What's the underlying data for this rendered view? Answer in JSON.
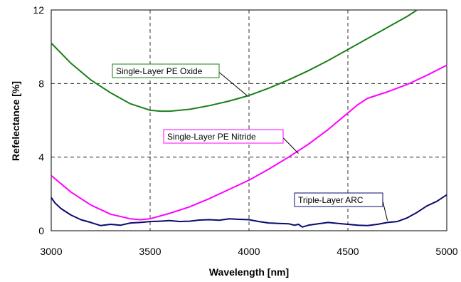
{
  "chart_data": {
    "type": "line",
    "xlabel": "Wavelength [nm]",
    "ylabel": "Refelectance [%]",
    "xlim": [
      3000,
      5000
    ],
    "ylim": [
      0,
      12
    ],
    "x_ticks": [
      "3000",
      "3500",
      "4000",
      "4500",
      "5000"
    ],
    "y_ticks": [
      "0",
      "4",
      "8",
      "12"
    ],
    "grid": "dashed at x ticks and y ticks",
    "series": [
      {
        "name": "Single-Layer PE Oxide",
        "color": "#1a7f1a",
        "x": [
          3000,
          3100,
          3200,
          3300,
          3400,
          3500,
          3550,
          3600,
          3700,
          3800,
          3900,
          4000,
          4100,
          4200,
          4300,
          4400,
          4500,
          4600,
          4700,
          4800,
          4850
        ],
        "y": [
          10.2,
          9.1,
          8.2,
          7.5,
          6.9,
          6.55,
          6.5,
          6.5,
          6.6,
          6.8,
          7.05,
          7.35,
          7.75,
          8.2,
          8.7,
          9.25,
          9.85,
          10.45,
          11.05,
          11.65,
          12.0
        ]
      },
      {
        "name": "Single-Layer PE Nitride",
        "color": "#ff00ff",
        "x": [
          3000,
          3100,
          3200,
          3300,
          3400,
          3450,
          3500,
          3600,
          3700,
          3800,
          3900,
          4000,
          4100,
          4200,
          4300,
          4400,
          4500,
          4550,
          4600,
          4700,
          4800,
          4900,
          5000
        ],
        "y": [
          3.0,
          2.1,
          1.4,
          0.9,
          0.65,
          0.6,
          0.65,
          0.95,
          1.3,
          1.75,
          2.25,
          2.75,
          3.35,
          4.0,
          4.7,
          5.5,
          6.4,
          6.85,
          7.2,
          7.55,
          7.95,
          8.45,
          9.0
        ]
      },
      {
        "name": "Triple-Layer ARC",
        "color": "#0a0a6e",
        "x": [
          3000,
          3020,
          3050,
          3100,
          3150,
          3200,
          3250,
          3300,
          3350,
          3400,
          3450,
          3500,
          3550,
          3600,
          3650,
          3700,
          3750,
          3800,
          3850,
          3900,
          3950,
          4000,
          4050,
          4100,
          4150,
          4200,
          4230,
          4250,
          4270,
          4300,
          4350,
          4400,
          4450,
          4500,
          4550,
          4600,
          4650,
          4700,
          4750,
          4800,
          4850,
          4900,
          4950,
          5000
        ],
        "y": [
          1.8,
          1.5,
          1.2,
          0.85,
          0.6,
          0.45,
          0.28,
          0.35,
          0.3,
          0.42,
          0.45,
          0.5,
          0.52,
          0.55,
          0.5,
          0.52,
          0.58,
          0.6,
          0.57,
          0.65,
          0.62,
          0.6,
          0.5,
          0.42,
          0.4,
          0.38,
          0.3,
          0.35,
          0.2,
          0.3,
          0.38,
          0.45,
          0.4,
          0.35,
          0.3,
          0.28,
          0.35,
          0.45,
          0.5,
          0.7,
          1.0,
          1.35,
          1.6,
          1.95
        ]
      }
    ],
    "annotations": [
      {
        "text": "Single-Layer PE Oxide",
        "series": 0,
        "box_color": "#1a7f1a",
        "point": [
          3990,
          7.35
        ]
      },
      {
        "text": "Single-Layer PE Nitride",
        "series": 1,
        "box_color": "#ff00ff",
        "point": [
          4250,
          4.2
        ]
      },
      {
        "text": "Triple-Layer ARC",
        "series": 2,
        "box_color": "#0a0a6e",
        "point": [
          4700,
          0.55
        ]
      }
    ]
  }
}
